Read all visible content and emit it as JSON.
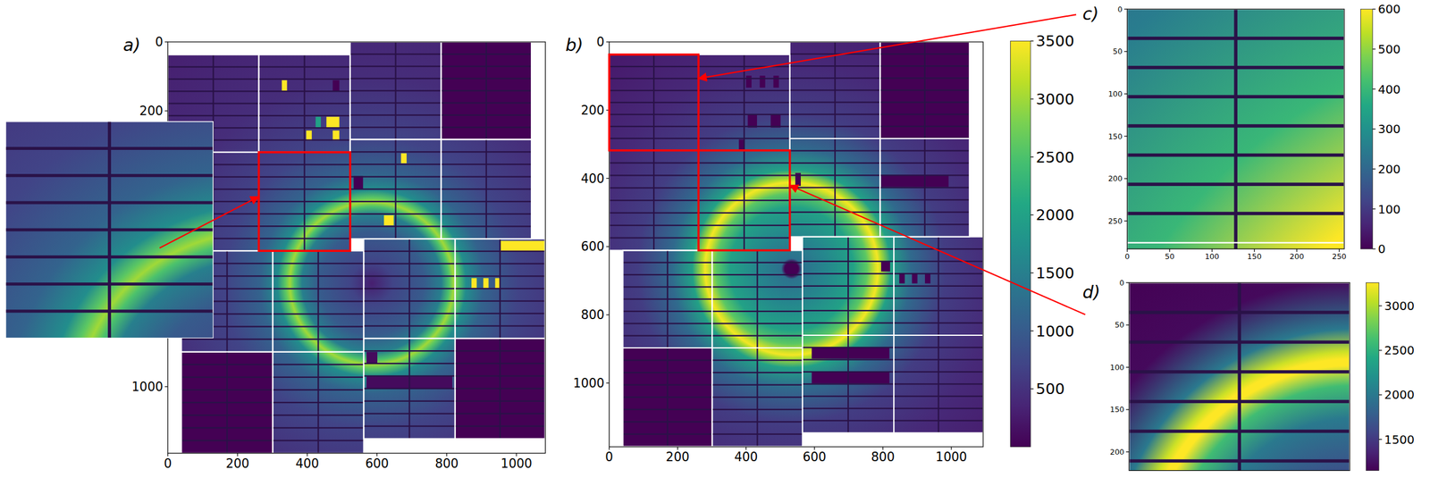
{
  "chart_data": [
    {
      "type": "heatmap",
      "label": "a)",
      "xlim": [
        0,
        1083
      ],
      "ylim": [
        1193,
        0
      ],
      "xticks": [
        0,
        200,
        400,
        600,
        800,
        1000
      ],
      "yticks": [
        0,
        200,
        1000
      ],
      "clim": [
        0,
        3500
      ],
      "center": [
        585,
        700
      ],
      "profile": {
        "r": [
          0,
          60,
          150,
          200,
          222,
          235,
          248,
          270,
          320,
          420,
          600,
          900
        ],
        "intensity": [
          300,
          700,
          1000,
          1500,
          2500,
          3000,
          2600,
          1700,
          1100,
          700,
          450,
          300
        ]
      },
      "modules": [
        [
          0,
          37,
          261,
          320
        ],
        [
          261,
          37,
          523,
          320
        ],
        [
          0,
          320,
          261,
          606
        ],
        [
          261,
          320,
          523,
          606
        ],
        [
          523,
          0,
          784,
          283
        ],
        [
          784,
          0,
          1043,
          283
        ],
        [
          523,
          283,
          784,
          571
        ],
        [
          784,
          283,
          1043,
          571
        ],
        [
          39,
          606,
          301,
          899
        ],
        [
          301,
          606,
          562,
          899
        ],
        [
          39,
          899,
          301,
          1193
        ],
        [
          301,
          899,
          562,
          1193
        ],
        [
          562,
          571,
          824,
          860
        ],
        [
          824,
          571,
          1082,
          860
        ],
        [
          562,
          860,
          824,
          1151
        ],
        [
          824,
          860,
          1082,
          1151
        ]
      ],
      "tiles": [
        [
          784,
          0,
          1043,
          283,
          0
        ],
        [
          39,
          899,
          301,
          1193,
          0
        ],
        [
          824,
          860,
          1082,
          1151,
          0
        ],
        [
          327,
          111,
          342,
          143,
          3500
        ],
        [
          455,
          217,
          492,
          249,
          3500
        ],
        [
          424,
          217,
          439,
          249,
          2000
        ],
        [
          397,
          257,
          413,
          286,
          3500
        ],
        [
          473,
          257,
          492,
          286,
          3500
        ],
        [
          669,
          323,
          685,
          352,
          3500
        ],
        [
          620,
          503,
          648,
          532,
          3500
        ],
        [
          954,
          577,
          1082,
          606,
          3500
        ],
        [
          871,
          685,
          886,
          714,
          3500
        ],
        [
          905,
          685,
          920,
          714,
          3500
        ],
        [
          939,
          685,
          954,
          714,
          3500
        ],
        [
          473,
          111,
          492,
          143,
          0
        ],
        [
          533,
          389,
          560,
          426,
          0
        ],
        [
          570,
          971,
          816,
          1005,
          100
        ],
        [
          570,
          899,
          601,
          931,
          100
        ]
      ],
      "zooms": [
        {
          "region": [
            261,
            320,
            523,
            606
          ]
        }
      ]
    },
    {
      "type": "heatmap",
      "label": "b)",
      "xlim": [
        0,
        1093
      ],
      "ylim": [
        1187,
        0
      ],
      "xticks": [
        0,
        200,
        400,
        600,
        800,
        1000
      ],
      "yticks": [
        0,
        200,
        400,
        600,
        800,
        1000
      ],
      "clim": [
        0,
        3500
      ],
      "colorbar_ticks": [
        500,
        1000,
        1500,
        2000,
        2500,
        3000,
        3500
      ],
      "center": [
        533,
        665
      ],
      "profile": {
        "r": [
          0,
          20,
          30,
          100,
          180,
          220,
          245,
          253,
          262,
          290,
          350,
          450,
          600,
          800,
          1000
        ],
        "intensity": [
          0,
          0,
          1300,
          1600,
          2000,
          2600,
          3300,
          3450,
          3100,
          2000,
          1200,
          620,
          400,
          250,
          180
        ]
      },
      "modules": [
        [
          0,
          37,
          261,
          318
        ],
        [
          261,
          37,
          528,
          318
        ],
        [
          0,
          318,
          261,
          611
        ],
        [
          261,
          318,
          528,
          611
        ],
        [
          528,
          0,
          792,
          283
        ],
        [
          792,
          0,
          1053,
          283
        ],
        [
          528,
          283,
          792,
          571
        ],
        [
          792,
          283,
          1053,
          571
        ],
        [
          40,
          611,
          301,
          897
        ],
        [
          301,
          611,
          565,
          897
        ],
        [
          40,
          897,
          301,
          1186
        ],
        [
          301,
          897,
          565,
          1186
        ],
        [
          565,
          571,
          832,
          860
        ],
        [
          832,
          571,
          1093,
          860
        ],
        [
          565,
          860,
          832,
          1146
        ],
        [
          832,
          860,
          1093,
          1146
        ]
      ],
      "tiles": [
        [
          792,
          0,
          1053,
          283,
          0
        ],
        [
          40,
          897,
          301,
          1186,
          0
        ],
        [
          400,
          99,
          416,
          134,
          0
        ],
        [
          440,
          99,
          456,
          134,
          0
        ],
        [
          480,
          99,
          496,
          134,
          0
        ],
        [
          405,
          214,
          432,
          251,
          0
        ],
        [
          472,
          214,
          501,
          251,
          0
        ],
        [
          379,
          286,
          395,
          318,
          0
        ],
        [
          544,
          384,
          560,
          422,
          0
        ],
        [
          795,
          390,
          992,
          425,
          0
        ],
        [
          795,
          644,
          821,
          673,
          0
        ],
        [
          848,
          678,
          864,
          708,
          0
        ],
        [
          885,
          678,
          901,
          708,
          0
        ],
        [
          923,
          678,
          939,
          708,
          0
        ],
        [
          592,
          895,
          819,
          929,
          0
        ],
        [
          592,
          967,
          819,
          1001,
          0
        ]
      ],
      "zooms": [
        {
          "label": "c)",
          "region": [
            0,
            37,
            261,
            318
          ],
          "xlim": [
            0,
            256
          ],
          "ylim": [
            283,
            0
          ],
          "xticks": [
            0,
            50,
            100,
            150,
            200,
            250
          ],
          "yticks": [
            0,
            50,
            100,
            150,
            200,
            250
          ],
          "clim": [
            0,
            600
          ],
          "colorbar_ticks": [
            0,
            100,
            200,
            300,
            400,
            500,
            600
          ]
        },
        {
          "label": "d)",
          "region": [
            261,
            318,
            528,
            611
          ],
          "xlim": [
            0,
            256
          ],
          "ylim": [
            222,
            0
          ],
          "yticks": [
            0,
            50,
            100,
            150,
            200
          ],
          "clim": [
            1150,
            3260
          ],
          "colorbar_ticks": [
            1500,
            2000,
            2500,
            3000
          ]
        }
      ]
    }
  ]
}
